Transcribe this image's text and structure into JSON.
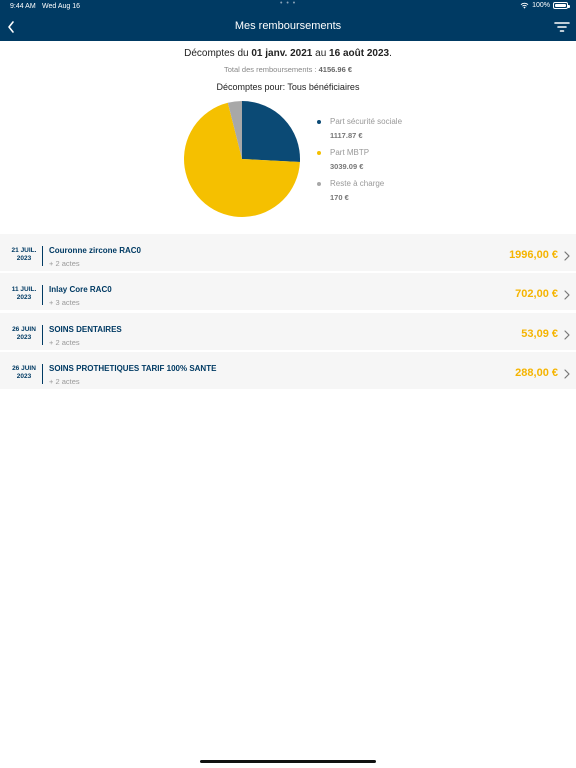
{
  "status_bar": {
    "time": "9:44 AM",
    "date": "Wed Aug 16",
    "dots": "• • •",
    "battery": "100%"
  },
  "header": {
    "title": "Mes remboursements"
  },
  "summary": {
    "period_prefix": "Décomptes du",
    "period_start": "01 janv. 2021",
    "period_mid": "au",
    "period_end": "16 août 2023",
    "period_suffix": ".",
    "total_label": "Total des remboursements :",
    "total_value": "4156.96 €",
    "beneficiaries": "Décomptes pour: Tous bénéficiaires"
  },
  "chart_data": {
    "type": "pie",
    "slices": [
      {
        "name": "Part sécurité sociale",
        "label": "1117.87 €",
        "value": 1117.87,
        "color": "#0b4a75"
      },
      {
        "name": "Part MBTP",
        "label": "3039.09 €",
        "value": 3039.09,
        "color": "#f5c000"
      },
      {
        "name": "Reste à charge",
        "label": "170 €",
        "value": 170,
        "color": "#a8a8a8"
      }
    ],
    "legend_position": "right"
  },
  "reimbursements": [
    {
      "day": "21 JUIL.",
      "year": "2023",
      "title": "Couronne zircone RAC0",
      "acts": "+ 2 actes",
      "amount": "1996,00 €"
    },
    {
      "day": "11 JUIL.",
      "year": "2023",
      "title": "Inlay Core RAC0",
      "acts": "+ 3 actes",
      "amount": "702,00 €"
    },
    {
      "day": "26 JUIN",
      "year": "2023",
      "title": "SOINS DENTAIRES",
      "acts": "+ 2 actes",
      "amount": "53,09 €"
    },
    {
      "day": "26 JUIN",
      "year": "2023",
      "title": "SOINS PROTHETIQUES TARIF 100% SANTE",
      "acts": "+ 2 actes",
      "amount": "288,00 €"
    }
  ]
}
